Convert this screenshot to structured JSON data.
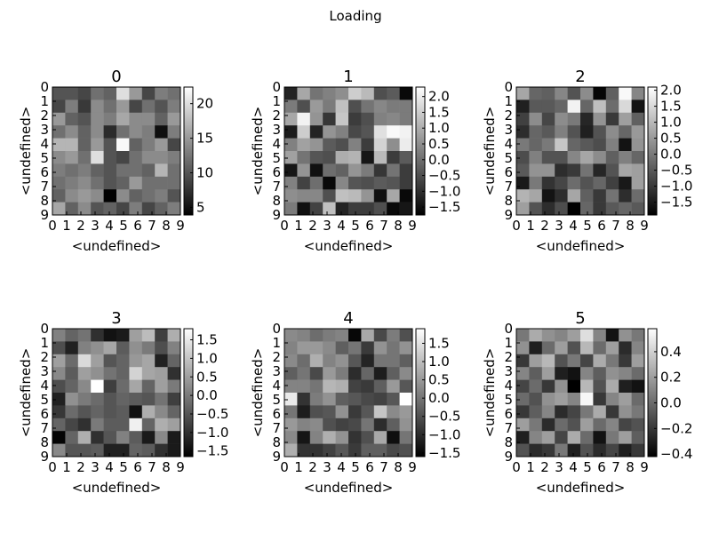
{
  "suptitle": "Loading",
  "chart_data": [
    {
      "type": "heatmap",
      "title": "0",
      "xlabel": "<undefined>",
      "ylabel": "<undefined>",
      "x_ticks": [
        "0",
        "1",
        "2",
        "3",
        "4",
        "5",
        "6",
        "7",
        "8",
        "9"
      ],
      "y_ticks": [
        "0",
        "1",
        "2",
        "3",
        "4",
        "5",
        "6",
        "7",
        "8",
        "9"
      ],
      "vmin": 3.9,
      "vmax": 22.4,
      "colorbar_ticks": [
        5,
        10,
        15,
        20
      ],
      "colormap": "gray",
      "values": [
        [
          10,
          10,
          9,
          12,
          11,
          20,
          15,
          9,
          13,
          12
        ],
        [
          9,
          13,
          8,
          14,
          12,
          15,
          9,
          12,
          10,
          13
        ],
        [
          15,
          11,
          10,
          14,
          13,
          16,
          14,
          14,
          11,
          15
        ],
        [
          12,
          14,
          11,
          14,
          7,
          12,
          14,
          13,
          5,
          13
        ],
        [
          17,
          17,
          11,
          15,
          10,
          22,
          11,
          13,
          15,
          9
        ],
        [
          14,
          15,
          12,
          20,
          10,
          9,
          12,
          14,
          14,
          13
        ],
        [
          13,
          12,
          13,
          11,
          10,
          12,
          12,
          11,
          17,
          12
        ],
        [
          12,
          13,
          14,
          12,
          10,
          11,
          15,
          12,
          12,
          12
        ],
        [
          11,
          14,
          15,
          14,
          4,
          14,
          11,
          12,
          13,
          10
        ],
        [
          16,
          11,
          14,
          10,
          11,
          9,
          13,
          9,
          11,
          13
        ]
      ]
    },
    {
      "type": "heatmap",
      "title": "1",
      "xlabel": "<undefined>",
      "ylabel": "<undefined>",
      "x_ticks": [
        "0",
        "1",
        "2",
        "3",
        "4",
        "5",
        "6",
        "7",
        "8",
        "9"
      ],
      "y_ticks": [
        "0",
        "1",
        "2",
        "3",
        "4",
        "5",
        "6",
        "7",
        "8",
        "9"
      ],
      "vmin": -1.75,
      "vmax": 2.3,
      "colorbar_ticks": [
        -1.5,
        -1.0,
        -0.5,
        0.0,
        0.5,
        1.0,
        1.5,
        2.0
      ],
      "colormap": "gray",
      "values": [
        [
          -1.2,
          0.9,
          0.1,
          0.3,
          0.5,
          1.5,
          1.2,
          -0.5,
          -0.3,
          -1.6
        ],
        [
          0.2,
          -0.5,
          0.7,
          0.2,
          1.3,
          -0.5,
          0.1,
          0.4,
          0.2,
          0.2
        ],
        [
          0.9,
          2.1,
          0.6,
          -0.9,
          1.4,
          -0.8,
          -0.5,
          0.3,
          0.4,
          0.2
        ],
        [
          -1.3,
          1.5,
          -1.2,
          0.6,
          0.3,
          -0.6,
          -0.4,
          1.8,
          2.2,
          2.1
        ],
        [
          0.3,
          0.8,
          0.6,
          -0.3,
          -0.5,
          0.3,
          -0.8,
          1.6,
          0.5,
          2.0
        ],
        [
          0.8,
          0.1,
          -0.4,
          -0.5,
          1.0,
          1.1,
          -1.4,
          1.2,
          -0.8,
          -0.3
        ],
        [
          -1.4,
          0.6,
          -1.5,
          0.0,
          -0.2,
          0.6,
          0.2,
          -0.9,
          0.1,
          -0.8
        ],
        [
          0.3,
          -0.7,
          0.0,
          -1.6,
          0.4,
          -0.4,
          -0.5,
          -0.3,
          -0.4,
          -0.8
        ],
        [
          0.5,
          0.4,
          0.4,
          -0.5,
          1.3,
          1.2,
          0.6,
          -1.5,
          0.9,
          -1.6
        ],
        [
          0.2,
          -1.5,
          -0.7,
          1.3,
          -1.2,
          -0.8,
          -0.8,
          -0.5,
          -1.6,
          -1.4
        ]
      ]
    },
    {
      "type": "heatmap",
      "title": "2",
      "xlabel": "<undefined>",
      "ylabel": "<undefined>",
      "x_ticks": [
        "0",
        "1",
        "2",
        "3",
        "4",
        "5",
        "6",
        "7",
        "8",
        "9"
      ],
      "y_ticks": [
        "0",
        "1",
        "2",
        "3",
        "4",
        "5",
        "6",
        "7",
        "8",
        "9"
      ],
      "vmin": -1.9,
      "vmax": 2.1,
      "colorbar_ticks": [
        -1.5,
        -1.0,
        -0.5,
        0.0,
        0.5,
        1.0,
        1.5,
        2.0
      ],
      "colormap": "gray",
      "values": [
        [
          0.7,
          -0.3,
          -0.4,
          0.2,
          -0.6,
          0.3,
          -1.8,
          -0.4,
          2.0,
          0.2
        ],
        [
          -1.4,
          -0.5,
          -0.5,
          -0.3,
          1.9,
          -0.3,
          1.1,
          -0.2,
          1.5,
          -1.6
        ],
        [
          -0.9,
          0.3,
          -0.8,
          0.3,
          0.0,
          -1.3,
          0.4,
          -1.0,
          0.6,
          -0.4
        ],
        [
          -1.2,
          -0.3,
          -0.5,
          0.1,
          -0.6,
          -1.4,
          -0.6,
          0.3,
          -0.3,
          0.5
        ],
        [
          0.0,
          -0.3,
          0.0,
          1.2,
          -0.3,
          -0.5,
          -0.7,
          0.1,
          -1.6,
          0.4
        ],
        [
          -0.7,
          0.1,
          -0.6,
          -0.6,
          0.2,
          0.7,
          0.3,
          -0.4,
          0.1,
          -0.3
        ],
        [
          -0.5,
          0.4,
          0.4,
          -1.2,
          -1.0,
          -0.1,
          -1.3,
          -0.6,
          0.7,
          0.6
        ],
        [
          -1.5,
          0.0,
          -1.1,
          -0.8,
          -0.2,
          -0.6,
          -0.3,
          -0.9,
          -1.5,
          0.6
        ],
        [
          0.9,
          0.7,
          -1.6,
          -1.2,
          0.7,
          -0.4,
          -1.0,
          -0.1,
          -1.2,
          -0.2
        ],
        [
          0.6,
          -0.6,
          -1.2,
          -0.7,
          -1.9,
          -0.3,
          -1.0,
          -0.5,
          -0.3,
          -0.5
        ]
      ]
    },
    {
      "type": "heatmap",
      "title": "3",
      "xlabel": "<undefined>",
      "ylabel": "<undefined>",
      "x_ticks": [
        "0",
        "1",
        "2",
        "3",
        "4",
        "5",
        "6",
        "7",
        "8",
        "9"
      ],
      "y_ticks": [
        "0",
        "1",
        "2",
        "3",
        "4",
        "5",
        "6",
        "7",
        "8",
        "9"
      ],
      "vmin": -1.65,
      "vmax": 1.8,
      "colorbar_ticks": [
        -1.5,
        -1.0,
        -0.5,
        0.0,
        0.5,
        1.0,
        1.5
      ],
      "colormap": "gray",
      "values": [
        [
          0.1,
          -0.3,
          -0.1,
          -1.0,
          -1.4,
          -1.3,
          0.5,
          0.9,
          -0.8,
          0.7
        ],
        [
          -0.6,
          -1.2,
          0.1,
          0.3,
          0.6,
          -0.4,
          0.3,
          0.0,
          -0.6,
          0.1
        ],
        [
          0.5,
          -0.2,
          1.3,
          0.5,
          -0.5,
          -0.3,
          0.4,
          0.6,
          -1.2,
          -0.3
        ],
        [
          0.2,
          -0.4,
          0.5,
          0.3,
          -0.1,
          -0.3,
          1.2,
          0.6,
          0.5,
          -1.0
        ],
        [
          -0.6,
          -0.3,
          0.2,
          1.8,
          -0.8,
          -0.2,
          0.6,
          -0.3,
          0.5,
          0.0
        ],
        [
          -1.2,
          0.3,
          0.0,
          -0.2,
          -0.5,
          -0.3,
          -0.4,
          -0.5,
          -0.1,
          -0.8
        ],
        [
          -0.9,
          -0.2,
          -0.5,
          -0.3,
          -0.5,
          -0.4,
          -1.4,
          0.7,
          0.2,
          -0.3
        ],
        [
          -0.3,
          -0.7,
          -1.0,
          0.0,
          -0.4,
          -0.4,
          1.6,
          -0.3,
          0.7,
          0.5
        ],
        [
          -1.6,
          -0.3,
          0.7,
          -1.0,
          -0.5,
          0.1,
          -0.4,
          -1.3,
          0.2,
          -1.3
        ],
        [
          0.2,
          -0.5,
          -0.5,
          -0.4,
          -1.2,
          -1.2,
          -0.3,
          -0.4,
          -1.0,
          -1.3
        ]
      ]
    },
    {
      "type": "heatmap",
      "title": "4",
      "xlabel": "<undefined>",
      "ylabel": "<undefined>",
      "x_ticks": [
        "0",
        "1",
        "2",
        "3",
        "4",
        "5",
        "6",
        "7",
        "8",
        "9"
      ],
      "y_ticks": [
        "0",
        "1",
        "2",
        "3",
        "4",
        "5",
        "6",
        "7",
        "8",
        "9"
      ],
      "vmin": -1.6,
      "vmax": 1.9,
      "colorbar_ticks": [
        -1.5,
        -1.0,
        -0.5,
        0.0,
        0.5,
        1.0,
        1.5
      ],
      "colormap": "gray",
      "values": [
        [
          0.3,
          0.2,
          -0.1,
          0.1,
          0.2,
          -1.5,
          0.7,
          -0.6,
          0.1,
          -0.5
        ],
        [
          0.2,
          0.5,
          0.5,
          0.3,
          -0.3,
          0.0,
          -0.8,
          0.4,
          0.0,
          0.4
        ],
        [
          0.3,
          -0.1,
          0.8,
          0.2,
          0.4,
          -0.4,
          -1.1,
          0.0,
          0.0,
          -0.3
        ],
        [
          -0.3,
          0.0,
          -0.6,
          0.5,
          0.1,
          -1.0,
          -0.2,
          -1.2,
          -0.3,
          0.3
        ],
        [
          0.2,
          0.2,
          0.0,
          0.9,
          0.8,
          -0.7,
          -0.8,
          -0.3,
          0.5,
          -0.4
        ],
        [
          1.6,
          -0.9,
          0.1,
          0.4,
          -0.3,
          -0.4,
          -0.6,
          -0.7,
          -0.4,
          1.9
        ],
        [
          0.0,
          -1.2,
          -0.5,
          -0.4,
          0.4,
          -0.8,
          -0.4,
          1.1,
          0.3,
          0.5
        ],
        [
          0.5,
          0.2,
          0.3,
          -0.5,
          -0.7,
          -0.6,
          0.0,
          -1.0,
          -0.3,
          0.4
        ],
        [
          0.3,
          -1.3,
          0.2,
          0.8,
          0.4,
          -0.9,
          -0.5,
          0.7,
          -1.4,
          0.0
        ],
        [
          0.8,
          -0.9,
          -0.9,
          -0.7,
          -0.4,
          -0.8,
          -0.3,
          -0.3,
          -0.6,
          -0.5
        ]
      ]
    },
    {
      "type": "heatmap",
      "title": "5",
      "xlabel": "<undefined>",
      "ylabel": "<undefined>",
      "x_ticks": [
        "0",
        "1",
        "2",
        "3",
        "4",
        "5",
        "6",
        "7",
        "8",
        "9"
      ],
      "y_ticks": [
        "0",
        "1",
        "2",
        "3",
        "4",
        "5",
        "6",
        "7",
        "8",
        "9"
      ],
      "vmin": -0.42,
      "vmax": 0.58,
      "colorbar_ticks": [
        -0.4,
        -0.2,
        0.0,
        0.2,
        0.4
      ],
      "colormap": "gray",
      "values": [
        [
          0.05,
          0.25,
          0.15,
          0.1,
          0.2,
          0.45,
          0.1,
          -0.35,
          0.15,
          0.05
        ],
        [
          0.15,
          -0.3,
          0.0,
          0.2,
          -0.1,
          0.3,
          0.0,
          0.2,
          -0.25,
          0.1
        ],
        [
          -0.2,
          0.2,
          0.3,
          -0.1,
          0.05,
          -0.15,
          0.25,
          0.05,
          -0.2,
          0.2
        ],
        [
          0.1,
          -0.05,
          0.2,
          -0.3,
          -0.35,
          0.1,
          -0.05,
          0.15,
          0.1,
          0.0
        ],
        [
          -0.15,
          0.0,
          -0.2,
          0.15,
          -0.42,
          0.3,
          -0.1,
          0.25,
          -0.3,
          -0.35
        ],
        [
          0.0,
          -0.1,
          0.15,
          0.2,
          0.1,
          0.55,
          -0.2,
          0.1,
          0.2,
          0.0
        ],
        [
          -0.2,
          -0.05,
          0.1,
          -0.25,
          -0.15,
          0.05,
          0.25,
          -0.2,
          0.15,
          0.05
        ],
        [
          0.2,
          0.05,
          -0.25,
          0.0,
          -0.1,
          0.2,
          0.0,
          0.1,
          -0.15,
          -0.1
        ],
        [
          -0.3,
          0.1,
          0.2,
          -0.15,
          0.25,
          0.0,
          -0.35,
          0.05,
          0.2,
          -0.05
        ],
        [
          -0.1,
          -0.25,
          -0.2,
          0.05,
          -0.3,
          -0.1,
          -0.25,
          -0.15,
          -0.3,
          -0.2
        ]
      ]
    }
  ]
}
